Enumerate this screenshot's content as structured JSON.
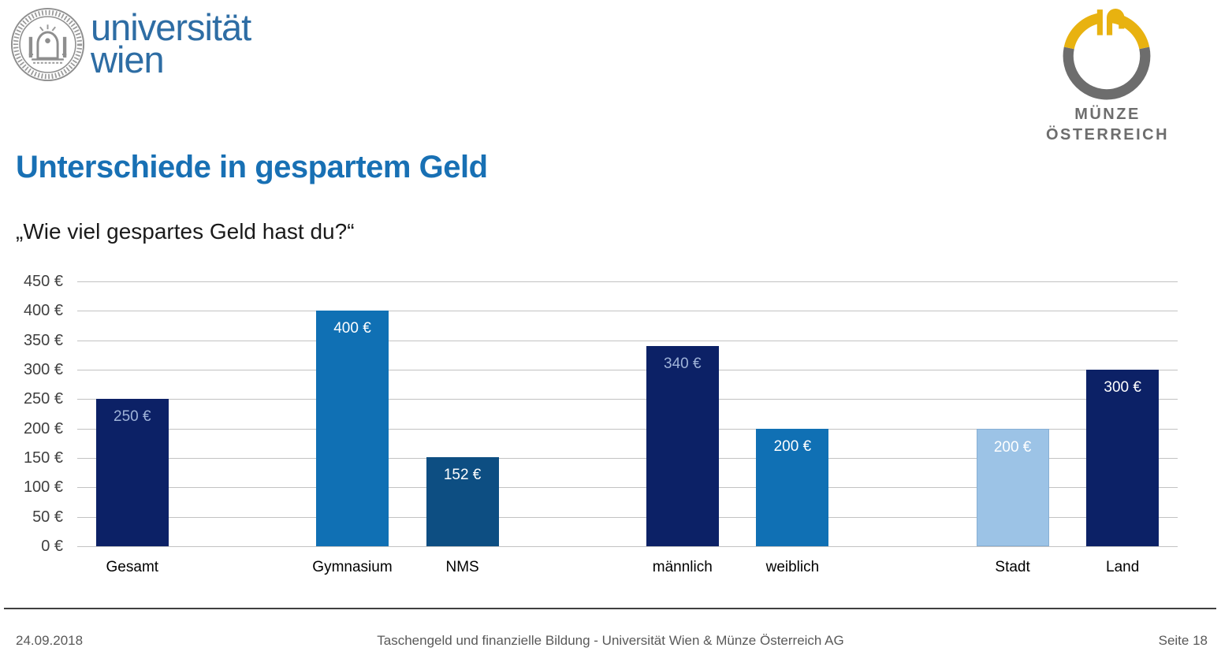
{
  "header": {
    "university_logo": {
      "line1": "universität",
      "line2": "wien"
    },
    "muenze_logo": {
      "line1": "MÜNZE",
      "line2": "ÖSTERREICH"
    }
  },
  "title": "Unterschiede in gespartem Geld",
  "subtitle": "„Wie viel gespartes Geld hast du?“",
  "footer": {
    "date": "24.09.2018",
    "center": "Taschengeld und finanzielle Bildung - Universität Wien & Münze Österreich AG",
    "page": "Seite 18"
  },
  "colors": {
    "title_blue": "#1870B4",
    "uni_blue": "#2E6DA4",
    "logo_gold": "#E8B210",
    "logo_gray": "#6D6D6D",
    "seal_gray": "#8E8E8E",
    "grid_gray": "#C2C2C2",
    "axis_text": "#404040",
    "footer_text": "#595959",
    "bar_navy": "#0C2166",
    "bar_blue": "#1070B4",
    "bar_steel": "#0D4E82",
    "bar_light": "#9CC3E6"
  },
  "chart_data": {
    "type": "bar",
    "title": "",
    "xlabel": "",
    "ylabel": "",
    "ylim": [
      0,
      450
    ],
    "ytick_step": 50,
    "ytick_suffix": " €",
    "grid": true,
    "legend": null,
    "slots": 10,
    "categories": [
      "Gesamt",
      "Gymnasium",
      "NMS",
      "männlich",
      "weiblich",
      "Stadt",
      "Land"
    ],
    "values": [
      250,
      400,
      152,
      340,
      200,
      200,
      300
    ],
    "bars": [
      {
        "label": "Gesamt",
        "value": 250,
        "slot": 0,
        "color": "#0C2166",
        "value_label": "250 €",
        "value_color": "#9FB3D8"
      },
      {
        "label": "Gymnasium",
        "value": 400,
        "slot": 2,
        "color": "#1070B4",
        "value_label": "400 €",
        "value_color": "#FFFFFF"
      },
      {
        "label": "NMS",
        "value": 152,
        "slot": 3,
        "color": "#0D4E82",
        "value_label": "152 €",
        "value_color": "#FFFFFF"
      },
      {
        "label": "männlich",
        "value": 340,
        "slot": 5,
        "color": "#0C2166",
        "value_label": "340 €",
        "value_color": "#9FB3D8"
      },
      {
        "label": "weiblich",
        "value": 200,
        "slot": 6,
        "color": "#1070B4",
        "value_label": "200 €",
        "value_color": "#FFFFFF"
      },
      {
        "label": "Stadt",
        "value": 200,
        "slot": 8,
        "color": "#9CC3E6",
        "value_label": "200 €",
        "value_color": "#FFFFFF",
        "border": "#86AFD4"
      },
      {
        "label": "Land",
        "value": 300,
        "slot": 9,
        "color": "#0C2166",
        "value_label": "300 €",
        "value_color": "#FFFFFF"
      }
    ]
  }
}
